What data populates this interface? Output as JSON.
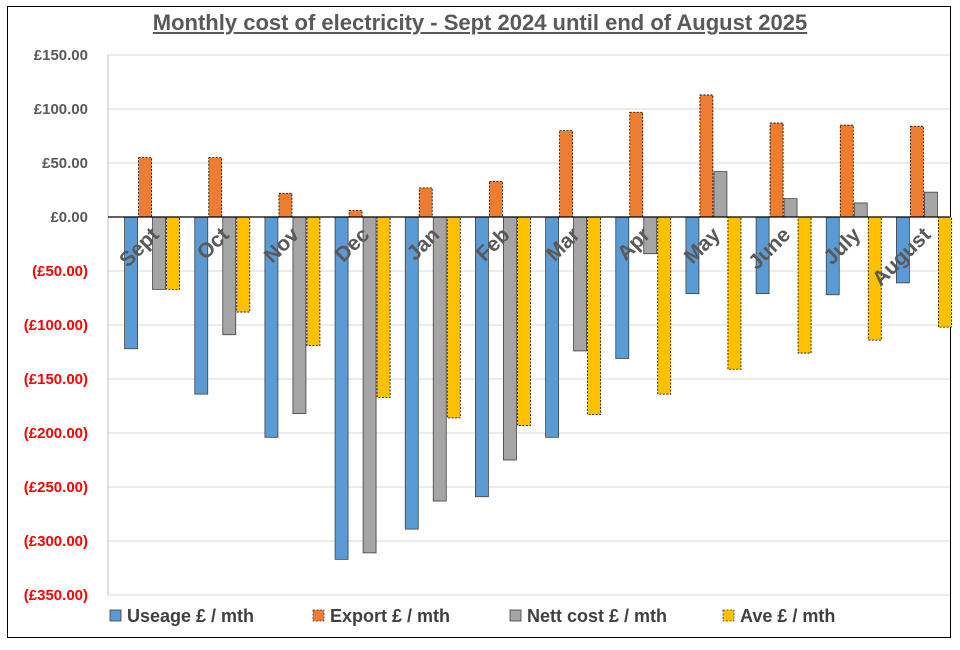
{
  "chart_data": {
    "type": "bar",
    "title": "Monthly cost of electricity - Sept 2024 until end of August 2025",
    "categories": [
      "Sept",
      "Oct",
      "Nov",
      "Dec",
      "Jan",
      "Feb",
      "Mar",
      "Apr",
      "May",
      "June",
      "July",
      "August"
    ],
    "series": [
      {
        "name": "Useage £ / mth",
        "color": "#5B9BD5",
        "values": [
          -122,
          -164,
          -204,
          -317,
          -289,
          -259,
          -204,
          -131,
          -71,
          -71,
          -72,
          -61
        ]
      },
      {
        "name": "Export £ / mth",
        "color": "#ED7D31",
        "values": [
          55,
          55,
          22,
          6,
          27,
          33,
          80,
          97,
          113,
          87,
          85,
          84
        ]
      },
      {
        "name": "Nett cost £ / mth",
        "color": "#A5A5A5",
        "values": [
          -67,
          -109,
          -182,
          -311,
          -263,
          -225,
          -124,
          -34,
          42,
          17,
          13,
          23
        ]
      },
      {
        "name": "Ave £ / mth",
        "color": "#FFC000",
        "values": [
          -67,
          -88,
          -119,
          -167,
          -186,
          -193,
          -183,
          -164,
          -141,
          -126,
          -114,
          -102
        ]
      }
    ],
    "ylim": [
      -350,
      150
    ],
    "yticks": [
      150,
      100,
      50,
      0,
      -50,
      -100,
      -150,
      -200,
      -250,
      -300,
      -350
    ],
    "ytick_labels": [
      "£150.00",
      "£100.00",
      "£50.00",
      "£0.00",
      "(£50.00)",
      "(£100.00)",
      "(£150.00)",
      "(£200.00)",
      "(£250.00)",
      "(£300.00)",
      "(£350.00)"
    ],
    "negative_label_color": "#FF0000",
    "positive_label_color": "#595959",
    "grid": true,
    "legend_position": "bottom"
  }
}
